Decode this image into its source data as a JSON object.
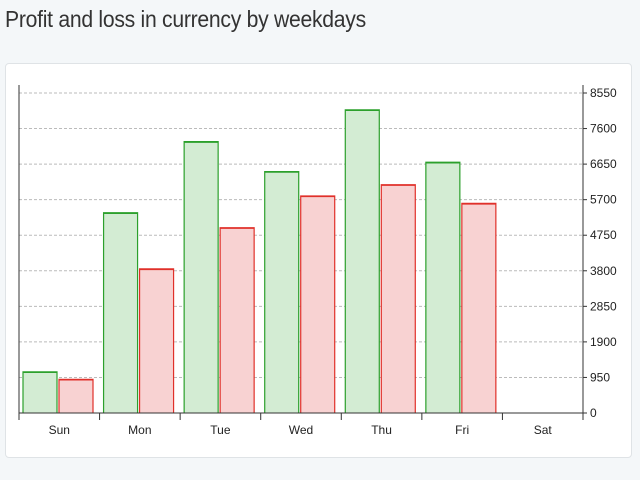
{
  "page": {
    "title": "Profit and loss in currency by weekdays"
  },
  "colors": {
    "profit_fill": "#d3ecd3",
    "profit_stroke": "#2ca02c",
    "loss_fill": "#f8d2d2",
    "loss_stroke": "#e0302a",
    "grid": "#bbbbbb",
    "axis": "#333333"
  },
  "chart_data": {
    "type": "bar",
    "title": "Profit and loss in currency by weekdays",
    "xlabel": "",
    "ylabel": "",
    "categories": [
      "Sun",
      "Mon",
      "Tue",
      "Wed",
      "Thu",
      "Fri",
      "Sat"
    ],
    "series": [
      {
        "values": [
          1100,
          5350,
          7250,
          6450,
          8100,
          6700,
          0
        ]
      },
      {
        "values": [
          900,
          3850,
          4950,
          5800,
          6100,
          5600,
          0
        ]
      }
    ],
    "yticks": [
      "0",
      "950",
      "1900",
      "2850",
      "3800",
      "4750",
      "5700",
      "6650",
      "7600",
      "8550"
    ],
    "ylim": [
      0,
      8550
    ],
    "y_axis_position": "right",
    "grid": true,
    "legend": "none"
  }
}
